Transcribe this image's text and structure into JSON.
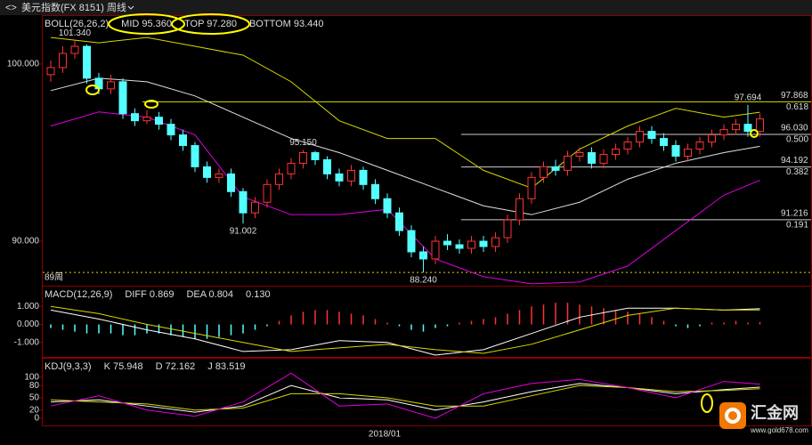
{
  "toolbar": {
    "symbol": "美元指数(FX 8151)",
    "period": "周线"
  },
  "watermark": {
    "name": "汇金网",
    "url": "www.gold678.com"
  },
  "chart_data": [
    {
      "type": "candlestick",
      "header": "BOLL(26,26,2)",
      "indicators": [
        {
          "text": "MID 95.360",
          "color": "#ffffff"
        },
        {
          "text": "TOP 97.280",
          "color": "#ffff00"
        },
        {
          "text": "BOTTOM 93.440",
          "color": "#ff00ff"
        }
      ],
      "up_color": "#ff3232",
      "down_color": "#54ffff",
      "candles": [
        [
          99.4,
          100.2,
          99.0,
          99.8
        ],
        [
          99.8,
          101.0,
          99.5,
          100.6
        ],
        [
          100.6,
          101.34,
          100.3,
          101.0
        ],
        [
          101.0,
          101.1,
          98.9,
          99.2
        ],
        [
          99.2,
          99.5,
          98.3,
          98.6
        ],
        [
          98.6,
          99.4,
          98.3,
          99.0
        ],
        [
          99.0,
          99.2,
          96.9,
          97.2
        ],
        [
          97.2,
          97.5,
          96.5,
          96.8
        ],
        [
          96.8,
          97.4,
          96.6,
          97.0
        ],
        [
          97.0,
          97.3,
          96.3,
          96.6
        ],
        [
          96.6,
          96.9,
          95.7,
          96.0
        ],
        [
          96.0,
          96.3,
          95.1,
          95.4
        ],
        [
          95.4,
          95.6,
          93.9,
          94.2
        ],
        [
          94.2,
          94.5,
          93.3,
          93.6
        ],
        [
          93.6,
          94.1,
          93.3,
          93.8
        ],
        [
          93.8,
          94.1,
          92.5,
          92.8
        ],
        [
          92.8,
          93.0,
          91.002,
          91.6
        ],
        [
          91.6,
          92.5,
          91.3,
          92.2
        ],
        [
          92.2,
          93.5,
          91.9,
          93.2
        ],
        [
          93.2,
          94.1,
          92.9,
          93.8
        ],
        [
          93.8,
          94.7,
          93.5,
          94.4
        ],
        [
          94.4,
          95.15,
          94.1,
          95.0
        ],
        [
          95.0,
          95.1,
          94.3,
          94.6
        ],
        [
          94.6,
          94.8,
          93.5,
          93.8
        ],
        [
          93.8,
          94.1,
          93.1,
          93.4
        ],
        [
          93.4,
          94.3,
          93.1,
          94.0
        ],
        [
          94.0,
          94.2,
          92.9,
          93.2
        ],
        [
          93.2,
          93.5,
          92.1,
          92.4
        ],
        [
          92.4,
          92.7,
          91.3,
          91.6
        ],
        [
          91.6,
          91.9,
          90.3,
          90.6
        ],
        [
          90.6,
          90.9,
          89.1,
          89.4
        ],
        [
          89.4,
          89.7,
          88.24,
          89.0
        ],
        [
          89.0,
          90.3,
          88.7,
          90.0
        ],
        [
          90.0,
          90.4,
          89.5,
          89.8
        ],
        [
          89.8,
          90.1,
          89.3,
          89.6
        ],
        [
          89.6,
          90.3,
          89.3,
          90.0
        ],
        [
          90.0,
          90.3,
          89.4,
          89.7
        ],
        [
          89.7,
          90.5,
          89.4,
          90.2
        ],
        [
          90.2,
          91.5,
          89.9,
          91.2
        ],
        [
          91.2,
          92.7,
          90.9,
          92.4
        ],
        [
          92.4,
          93.9,
          92.1,
          93.6
        ],
        [
          93.6,
          94.5,
          93.3,
          94.2
        ],
        [
          94.2,
          94.6,
          93.7,
          94.0
        ],
        [
          94.0,
          95.1,
          93.7,
          94.8
        ],
        [
          94.8,
          95.3,
          94.5,
          95.0
        ],
        [
          95.0,
          95.3,
          94.1,
          94.4
        ],
        [
          94.4,
          95.2,
          94.1,
          94.9
        ],
        [
          94.9,
          95.5,
          94.6,
          95.2
        ],
        [
          95.2,
          95.9,
          94.9,
          95.6
        ],
        [
          95.6,
          96.5,
          95.3,
          96.2
        ],
        [
          96.2,
          96.5,
          95.5,
          95.8
        ],
        [
          95.8,
          96.1,
          95.1,
          95.4
        ],
        [
          95.4,
          95.7,
          94.5,
          94.8
        ],
        [
          94.8,
          95.5,
          94.5,
          95.2
        ],
        [
          95.2,
          95.9,
          94.9,
          95.6
        ],
        [
          95.6,
          96.3,
          95.3,
          96.0
        ],
        [
          96.0,
          96.6,
          95.7,
          96.3
        ],
        [
          96.3,
          96.9,
          96.0,
          96.6
        ],
        [
          96.6,
          97.694,
          95.9,
          96.2
        ],
        [
          96.2,
          97.2,
          95.9,
          96.9
        ]
      ],
      "series": [
        {
          "color": "#e0e0e0",
          "x": [
            0,
            4,
            8,
            12,
            16,
            20,
            24,
            28,
            32,
            36,
            40,
            44,
            48,
            52,
            56,
            59
          ],
          "values": [
            98.5,
            99.2,
            99.0,
            98.2,
            97.0,
            95.8,
            95.0,
            94.0,
            93.0,
            92.0,
            91.5,
            92.2,
            93.5,
            94.4,
            95.0,
            95.36
          ]
        },
        {
          "color": "#d8d800",
          "x": [
            0,
            4,
            8,
            12,
            16,
            20,
            24,
            28,
            32,
            36,
            40,
            44,
            48,
            52,
            56,
            59
          ],
          "values": [
            101.5,
            101.2,
            101.5,
            101.0,
            100.5,
            99.0,
            96.8,
            95.8,
            95.8,
            94.0,
            93.0,
            95.2,
            96.5,
            97.5,
            97.0,
            97.28
          ]
        },
        {
          "color": "#e000e0",
          "x": [
            0,
            4,
            8,
            12,
            16,
            20,
            24,
            28,
            32,
            36,
            40,
            44,
            48,
            52,
            56,
            59
          ],
          "values": [
            96.5,
            97.3,
            97.0,
            96.0,
            92.5,
            91.5,
            91.5,
            91.8,
            89.0,
            88.0,
            87.6,
            87.7,
            88.6,
            90.6,
            92.6,
            93.44
          ]
        }
      ],
      "annotations": [
        {
          "text": "101.340",
          "value": 101.34,
          "color": "#ff3232"
        },
        {
          "text": "95.150",
          "value": 95.15,
          "color": "#ff3232"
        },
        {
          "text": "91.002",
          "value": 91.002,
          "color": "#54ffff"
        },
        {
          "text": "88.240",
          "value": 88.24,
          "color": "#54ffff"
        },
        {
          "text": "97.694",
          "value": 97.694,
          "color": "#ff3232"
        }
      ],
      "fib_levels": [
        {
          "value": 97.868,
          "label": "97.868",
          "ratio": "0.618"
        },
        {
          "value": 96.03,
          "label": "96.030",
          "ratio": "0.500"
        },
        {
          "value": 94.192,
          "label": "94.192",
          "ratio": "0.382"
        },
        {
          "value": 91.216,
          "label": "91.216",
          "ratio": "0.191"
        }
      ],
      "period_line": {
        "value": 88.24,
        "label": "89周"
      },
      "ylim": [
        87.44,
        102.71
      ],
      "yticks": [
        {
          "value": 90,
          "label": "90.000"
        },
        {
          "value": 100,
          "label": "100.000"
        }
      ]
    },
    {
      "type": "macd",
      "header": "MACD(12,26,9)",
      "indicators": [
        {
          "text": "DIFF 0.869",
          "color": "#ffffff"
        },
        {
          "text": "DEA 0.804",
          "color": "#ffff00"
        },
        {
          "text": "0.130",
          "color": "#ff00ff"
        }
      ],
      "up_color": "#ff3232",
      "down_color": "#54ffff",
      "histogram": [
        -0.2,
        -0.3,
        -0.4,
        -0.5,
        -0.5,
        -0.5,
        -0.6,
        -0.6,
        -0.5,
        -0.5,
        -0.6,
        -0.7,
        -0.8,
        -0.8,
        -0.7,
        -0.6,
        -0.5,
        -0.3,
        -0.1,
        0.2,
        0.5,
        0.7,
        0.8,
        0.8,
        0.7,
        0.6,
        0.5,
        0.3,
        0.1,
        -0.1,
        -0.3,
        -0.4,
        -0.2,
        -0.1,
        0.1,
        0.2,
        0.3,
        0.4,
        0.6,
        0.8,
        1.0,
        1.1,
        1.2,
        1.2,
        1.1,
        1.0,
        0.9,
        0.8,
        0.7,
        0.6,
        0.4,
        0.2,
        -0.1,
        -0.2,
        -0.1,
        0.1,
        0.1,
        0.2,
        0.1,
        0.13
      ],
      "series": [
        {
          "color": "#ffffff",
          "x": [
            0,
            4,
            8,
            12,
            16,
            20,
            24,
            28,
            32,
            36,
            40,
            44,
            48,
            52,
            56,
            59
          ],
          "values": [
            0.8,
            0.3,
            -0.3,
            -0.8,
            -1.5,
            -1.4,
            -0.9,
            -1.0,
            -1.7,
            -1.4,
            -0.5,
            0.4,
            0.9,
            0.9,
            0.8,
            0.869
          ]
        },
        {
          "color": "#d8d800",
          "x": [
            0,
            4,
            8,
            12,
            16,
            20,
            24,
            28,
            32,
            36,
            40,
            44,
            48,
            52,
            56,
            59
          ],
          "values": [
            1.0,
            0.6,
            0.0,
            -0.5,
            -1.0,
            -1.5,
            -1.3,
            -1.1,
            -1.4,
            -1.6,
            -1.1,
            -0.3,
            0.5,
            0.9,
            0.8,
            0.804
          ]
        }
      ],
      "ylim": [
        -1.8,
        2.1
      ],
      "yticks": [
        {
          "value": -1,
          "label": "-1.000"
        },
        {
          "value": 0,
          "label": "0.000"
        },
        {
          "value": 1,
          "label": "1.000"
        }
      ]
    },
    {
      "type": "line",
      "header": "KDJ(9,3,3)",
      "indicators": [
        {
          "text": "K 75.948",
          "color": "#ffffff"
        },
        {
          "text": "D 72.162",
          "color": "#ffff00"
        },
        {
          "text": "J 83.519",
          "color": "#ff00ff"
        }
      ],
      "series": [
        {
          "color": "#ffffff",
          "x": [
            0,
            4,
            8,
            12,
            16,
            20,
            24,
            28,
            32,
            36,
            40,
            44,
            48,
            52,
            56,
            59
          ],
          "values": [
            40,
            45,
            30,
            15,
            30,
            80,
            50,
            45,
            20,
            40,
            65,
            85,
            75,
            60,
            70,
            75.948
          ]
        },
        {
          "color": "#d8d800",
          "x": [
            0,
            4,
            8,
            12,
            16,
            20,
            24,
            28,
            32,
            36,
            40,
            44,
            48,
            52,
            56,
            59
          ],
          "values": [
            45,
            40,
            35,
            20,
            25,
            60,
            60,
            50,
            30,
            30,
            55,
            80,
            75,
            65,
            68,
            72.162
          ]
        },
        {
          "color": "#e000e0",
          "x": [
            0,
            4,
            8,
            12,
            16,
            20,
            24,
            28,
            32,
            36,
            40,
            44,
            48,
            52,
            56,
            59
          ],
          "values": [
            30,
            55,
            20,
            5,
            40,
            110,
            30,
            35,
            0,
            60,
            85,
            95,
            75,
            50,
            90,
            83.519
          ]
        }
      ],
      "ylim": [
        -17.4,
        145.6
      ],
      "yticks": [
        0,
        20,
        50,
        80,
        100
      ],
      "xlabel": "2018/01"
    }
  ]
}
